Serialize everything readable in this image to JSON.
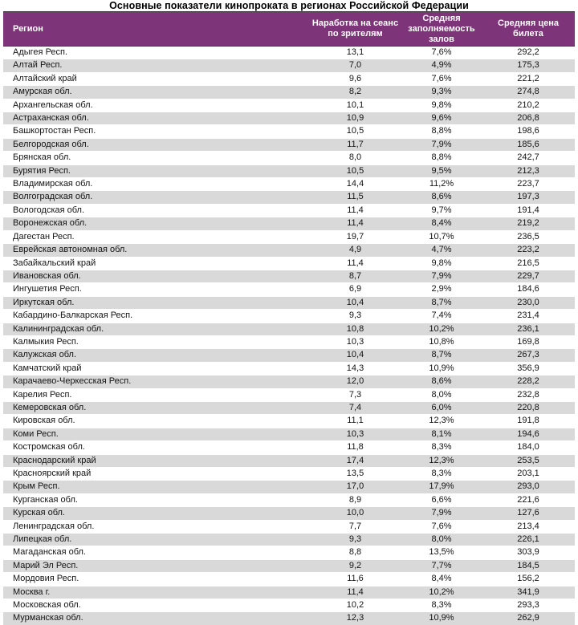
{
  "title": "Основные показатели кинопроката в регионах Российской Федерации",
  "table": {
    "columns": [
      "Регион",
      "Наработка на сеанс по зрителям",
      "Средняя заполняемость залов",
      "Средняя цена билета"
    ],
    "rows": [
      [
        "Адыгея Респ.",
        "13,1",
        "7,6%",
        "292,2"
      ],
      [
        "Алтай Респ.",
        "7,0",
        "4,9%",
        "175,3"
      ],
      [
        "Алтайский край",
        "9,6",
        "7,6%",
        "221,2"
      ],
      [
        "Амурская обл.",
        "8,2",
        "9,3%",
        "274,8"
      ],
      [
        "Архангельская обл.",
        "10,1",
        "9,8%",
        "210,2"
      ],
      [
        "Астраханская обл.",
        "10,9",
        "9,6%",
        "206,8"
      ],
      [
        "Башкортостан Респ.",
        "10,5",
        "8,8%",
        "198,6"
      ],
      [
        "Белгородская обл.",
        "11,7",
        "7,9%",
        "185,6"
      ],
      [
        "Брянская обл.",
        "8,0",
        "8,8%",
        "242,7"
      ],
      [
        "Бурятия Респ.",
        "10,5",
        "9,5%",
        "212,3"
      ],
      [
        "Владимирская обл.",
        "14,4",
        "11,2%",
        "223,7"
      ],
      [
        "Волгоградская обл.",
        "11,5",
        "8,6%",
        "197,3"
      ],
      [
        "Вологодская обл.",
        "11,4",
        "9,7%",
        "191,4"
      ],
      [
        "Воронежская обл.",
        "11,4",
        "8,4%",
        "219,2"
      ],
      [
        "Дагестан Респ.",
        "19,7",
        "10,7%",
        "236,5"
      ],
      [
        "Еврейская автономная обл.",
        "4,9",
        "4,7%",
        "223,2"
      ],
      [
        "Забайкальский край",
        "11,4",
        "9,8%",
        "216,5"
      ],
      [
        "Ивановская обл.",
        "8,7",
        "7,9%",
        "229,7"
      ],
      [
        "Ингушетия Респ.",
        "6,9",
        "2,9%",
        "184,6"
      ],
      [
        "Иркутская обл.",
        "10,4",
        "8,7%",
        "230,0"
      ],
      [
        "Кабардино-Балкарская Респ.",
        "9,3",
        "7,4%",
        "231,4"
      ],
      [
        "Калининградская обл.",
        "10,8",
        "10,2%",
        "236,1"
      ],
      [
        "Калмыкия Респ.",
        "10,3",
        "10,8%",
        "169,8"
      ],
      [
        "Калужская обл.",
        "10,4",
        "8,7%",
        "267,3"
      ],
      [
        "Камчатский край",
        "14,3",
        "10,9%",
        "356,9"
      ],
      [
        "Карачаево-Черкесская Респ.",
        "12,0",
        "8,6%",
        "228,2"
      ],
      [
        "Карелия Респ.",
        "7,3",
        "8,0%",
        "232,8"
      ],
      [
        "Кемеровская обл.",
        "7,4",
        "6,0%",
        "220,8"
      ],
      [
        "Кировская обл.",
        "11,1",
        "12,3%",
        "191,8"
      ],
      [
        "Коми Респ.",
        "10,3",
        "8,1%",
        "194,6"
      ],
      [
        "Костромская обл.",
        "11,8",
        "8,3%",
        "184,0"
      ],
      [
        "Краснодарский край",
        "17,4",
        "12,3%",
        "253,5"
      ],
      [
        "Красноярский край",
        "13,5",
        "8,3%",
        "203,1"
      ],
      [
        "Крым Респ.",
        "17,0",
        "17,9%",
        "293,0"
      ],
      [
        "Курганская обл.",
        "8,9",
        "6,6%",
        "221,6"
      ],
      [
        "Курская обл.",
        "10,0",
        "7,9%",
        "127,6"
      ],
      [
        "Ленинградская обл.",
        "7,7",
        "7,6%",
        "213,4"
      ],
      [
        "Липецкая обл.",
        "9,3",
        "8,0%",
        "226,1"
      ],
      [
        "Магаданская обл.",
        "8,8",
        "13,5%",
        "303,9"
      ],
      [
        "Марий Эл Респ.",
        "9,2",
        "7,7%",
        "184,5"
      ],
      [
        "Мордовия Респ.",
        "11,6",
        "8,4%",
        "156,2"
      ],
      [
        "Москва г.",
        "11,4",
        "10,2%",
        "341,9"
      ],
      [
        "Московская обл.",
        "10,2",
        "8,3%",
        "293,3"
      ],
      [
        "Мурманская обл.",
        "12,3",
        "10,9%",
        "262,9"
      ]
    ]
  },
  "colors": {
    "header_bg": "#7e3478",
    "header_text": "#ffffff",
    "stripe": "#d9d9d9",
    "border_dark": "#3c3c3c"
  }
}
